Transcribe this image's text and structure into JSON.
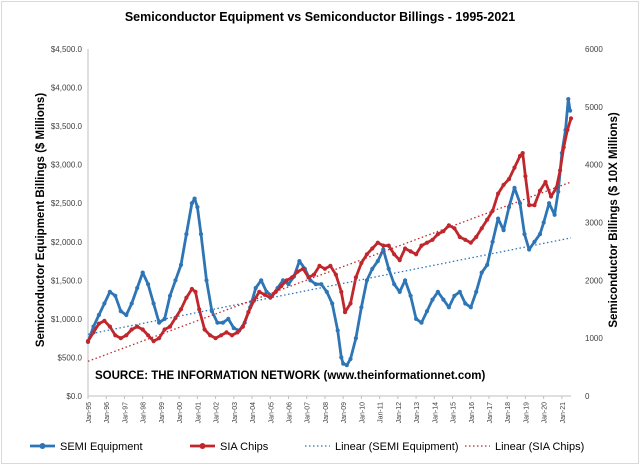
{
  "chart_data": {
    "type": "line",
    "title": "Semiconductor Equipment vs Semiconductor Billings - 1995-2021",
    "ylabel_left": "Semiconductor Equipment Billings ($ Millions)",
    "ylabel_right": "Semiconductor Billings ($ 10X Millions)",
    "source_note": "SOURCE: THE INFORMATION NETWORK (www.theinformationnet.com)",
    "x_range": [
      1995.0,
      2021.5
    ],
    "y_left": {
      "min": 0,
      "max": 4500,
      "step": 500
    },
    "y_right": {
      "min": 0,
      "max": 6000,
      "step": 1000
    },
    "y_left_ticks": [
      "$0.0",
      "$500.0",
      "$1,000.0",
      "$1,500.0",
      "$2,000.0",
      "$2,500.0",
      "$3,000.0",
      "$3,500.0",
      "$4,000.0",
      "$4,500.0"
    ],
    "y_right_ticks": [
      "0",
      "1000",
      "2000",
      "3000",
      "4000",
      "5000",
      "6000"
    ],
    "x_ticks": [
      {
        "label": "Jan-95",
        "x": 1995
      },
      {
        "label": "Jan-96",
        "x": 1996
      },
      {
        "label": "Jan-97",
        "x": 1997
      },
      {
        "label": "Jan-98",
        "x": 1998
      },
      {
        "label": "Jan-99",
        "x": 1999
      },
      {
        "label": "Jan-00",
        "x": 2000
      },
      {
        "label": "Jan-01",
        "x": 2001
      },
      {
        "label": "Jan-02",
        "x": 2002
      },
      {
        "label": "Jan-03",
        "x": 2003
      },
      {
        "label": "Jan-04",
        "x": 2004
      },
      {
        "label": "Jan-05",
        "x": 2005
      },
      {
        "label": "Jan-06",
        "x": 2006
      },
      {
        "label": "Jan-07",
        "x": 2007
      },
      {
        "label": "Jan-08",
        "x": 2008
      },
      {
        "label": "Jan-09",
        "x": 2009
      },
      {
        "label": "Jan-10",
        "x": 2010
      },
      {
        "label": "Jan-11",
        "x": 2011
      },
      {
        "label": "Jan-12",
        "x": 2012
      },
      {
        "label": "Jan-13",
        "x": 2013
      },
      {
        "label": "Jan-14",
        "x": 2014
      },
      {
        "label": "Jan-15",
        "x": 2015
      },
      {
        "label": "Jan-16",
        "x": 2016
      },
      {
        "label": "Jan-17",
        "x": 2017
      },
      {
        "label": "Jan-18",
        "x": 2018
      },
      {
        "label": "Jan-19",
        "x": 2019
      },
      {
        "label": "Jan-20",
        "x": 2020
      },
      {
        "label": "Jan-21",
        "x": 2021
      }
    ],
    "series": [
      {
        "name": "SEMI Equipment",
        "axis": "left",
        "color": "#2e75b6",
        "marker": "circle",
        "points": [
          [
            1995.0,
            700
          ],
          [
            1995.3,
            900
          ],
          [
            1995.6,
            1050
          ],
          [
            1995.9,
            1200
          ],
          [
            1996.2,
            1350
          ],
          [
            1996.5,
            1300
          ],
          [
            1996.8,
            1100
          ],
          [
            1997.1,
            1050
          ],
          [
            1997.4,
            1200
          ],
          [
            1997.7,
            1400
          ],
          [
            1998.0,
            1600
          ],
          [
            1998.3,
            1450
          ],
          [
            1998.6,
            1200
          ],
          [
            1998.9,
            950
          ],
          [
            1999.2,
            1000
          ],
          [
            1999.5,
            1300
          ],
          [
            1999.8,
            1500
          ],
          [
            2000.1,
            1700
          ],
          [
            2000.4,
            2100
          ],
          [
            2000.7,
            2500
          ],
          [
            2000.85,
            2560
          ],
          [
            2001.0,
            2450
          ],
          [
            2001.2,
            2100
          ],
          [
            2001.5,
            1500
          ],
          [
            2001.8,
            1100
          ],
          [
            2002.1,
            950
          ],
          [
            2002.4,
            950
          ],
          [
            2002.7,
            1000
          ],
          [
            2003.0,
            880
          ],
          [
            2003.3,
            850
          ],
          [
            2003.6,
            950
          ],
          [
            2003.9,
            1150
          ],
          [
            2004.2,
            1400
          ],
          [
            2004.5,
            1500
          ],
          [
            2004.8,
            1350
          ],
          [
            2005.1,
            1300
          ],
          [
            2005.4,
            1400
          ],
          [
            2005.7,
            1500
          ],
          [
            2006.0,
            1450
          ],
          [
            2006.3,
            1550
          ],
          [
            2006.6,
            1750
          ],
          [
            2006.9,
            1650
          ],
          [
            2007.2,
            1500
          ],
          [
            2007.5,
            1450
          ],
          [
            2007.8,
            1450
          ],
          [
            2008.1,
            1350
          ],
          [
            2008.4,
            1200
          ],
          [
            2008.7,
            850
          ],
          [
            2008.9,
            500
          ],
          [
            2009.0,
            420
          ],
          [
            2009.2,
            400
          ],
          [
            2009.4,
            480
          ],
          [
            2009.7,
            750
          ],
          [
            2010.0,
            1150
          ],
          [
            2010.3,
            1500
          ],
          [
            2010.6,
            1650
          ],
          [
            2010.9,
            1750
          ],
          [
            2011.2,
            1900
          ],
          [
            2011.5,
            1650
          ],
          [
            2011.8,
            1450
          ],
          [
            2012.1,
            1350
          ],
          [
            2012.4,
            1500
          ],
          [
            2012.7,
            1300
          ],
          [
            2013.0,
            1000
          ],
          [
            2013.3,
            950
          ],
          [
            2013.6,
            1100
          ],
          [
            2013.9,
            1250
          ],
          [
            2014.2,
            1350
          ],
          [
            2014.5,
            1250
          ],
          [
            2014.8,
            1150
          ],
          [
            2015.1,
            1300
          ],
          [
            2015.4,
            1350
          ],
          [
            2015.7,
            1200
          ],
          [
            2016.0,
            1150
          ],
          [
            2016.3,
            1350
          ],
          [
            2016.6,
            1600
          ],
          [
            2016.9,
            1700
          ],
          [
            2017.2,
            2000
          ],
          [
            2017.5,
            2300
          ],
          [
            2017.8,
            2150
          ],
          [
            2018.1,
            2450
          ],
          [
            2018.4,
            2700
          ],
          [
            2018.7,
            2500
          ],
          [
            2018.95,
            2100
          ],
          [
            2019.2,
            1900
          ],
          [
            2019.5,
            2000
          ],
          [
            2019.8,
            2100
          ],
          [
            2020.0,
            2250
          ],
          [
            2020.3,
            2500
          ],
          [
            2020.6,
            2350
          ],
          [
            2020.8,
            2650
          ],
          [
            2021.0,
            3150
          ],
          [
            2021.2,
            3450
          ],
          [
            2021.35,
            3850
          ],
          [
            2021.45,
            3700
          ]
        ]
      },
      {
        "name": "SIA Chips",
        "axis": "right",
        "color": "#c0272d",
        "marker": "circle",
        "points": [
          [
            1995.0,
            950
          ],
          [
            1995.3,
            1100
          ],
          [
            1995.6,
            1250
          ],
          [
            1995.9,
            1300
          ],
          [
            1996.2,
            1200
          ],
          [
            1996.5,
            1050
          ],
          [
            1996.8,
            1000
          ],
          [
            1997.1,
            1050
          ],
          [
            1997.4,
            1150
          ],
          [
            1997.7,
            1200
          ],
          [
            1998.0,
            1150
          ],
          [
            1998.3,
            1050
          ],
          [
            1998.6,
            950
          ],
          [
            1998.9,
            1000
          ],
          [
            1999.2,
            1150
          ],
          [
            1999.5,
            1200
          ],
          [
            1999.8,
            1350
          ],
          [
            2000.1,
            1500
          ],
          [
            2000.4,
            1700
          ],
          [
            2000.7,
            1850
          ],
          [
            2000.9,
            1800
          ],
          [
            2001.1,
            1500
          ],
          [
            2001.4,
            1150
          ],
          [
            2001.7,
            1050
          ],
          [
            2002.0,
            1000
          ],
          [
            2002.3,
            1050
          ],
          [
            2002.6,
            1100
          ],
          [
            2002.9,
            1050
          ],
          [
            2003.2,
            1100
          ],
          [
            2003.5,
            1200
          ],
          [
            2003.8,
            1450
          ],
          [
            2004.1,
            1650
          ],
          [
            2004.4,
            1800
          ],
          [
            2004.7,
            1750
          ],
          [
            2005.0,
            1700
          ],
          [
            2005.3,
            1800
          ],
          [
            2005.6,
            1900
          ],
          [
            2005.9,
            2000
          ],
          [
            2006.2,
            2050
          ],
          [
            2006.5,
            2150
          ],
          [
            2006.8,
            2200
          ],
          [
            2007.1,
            2050
          ],
          [
            2007.4,
            2100
          ],
          [
            2007.7,
            2250
          ],
          [
            2008.0,
            2200
          ],
          [
            2008.3,
            2250
          ],
          [
            2008.6,
            2100
          ],
          [
            2008.9,
            1800
          ],
          [
            2009.1,
            1450
          ],
          [
            2009.4,
            1600
          ],
          [
            2009.7,
            2050
          ],
          [
            2010.0,
            2300
          ],
          [
            2010.3,
            2450
          ],
          [
            2010.6,
            2550
          ],
          [
            2010.9,
            2650
          ],
          [
            2011.2,
            2600
          ],
          [
            2011.5,
            2600
          ],
          [
            2011.8,
            2450
          ],
          [
            2012.1,
            2350
          ],
          [
            2012.4,
            2550
          ],
          [
            2012.7,
            2500
          ],
          [
            2013.0,
            2450
          ],
          [
            2013.3,
            2600
          ],
          [
            2013.6,
            2650
          ],
          [
            2013.9,
            2700
          ],
          [
            2014.2,
            2800
          ],
          [
            2014.5,
            2850
          ],
          [
            2014.8,
            2950
          ],
          [
            2015.1,
            2900
          ],
          [
            2015.4,
            2750
          ],
          [
            2015.7,
            2700
          ],
          [
            2016.0,
            2650
          ],
          [
            2016.3,
            2750
          ],
          [
            2016.6,
            2900
          ],
          [
            2016.9,
            3050
          ],
          [
            2017.2,
            3200
          ],
          [
            2017.5,
            3500
          ],
          [
            2017.8,
            3650
          ],
          [
            2018.1,
            3750
          ],
          [
            2018.4,
            3950
          ],
          [
            2018.7,
            4150
          ],
          [
            2018.85,
            4200
          ],
          [
            2019.0,
            3800
          ],
          [
            2019.2,
            3300
          ],
          [
            2019.5,
            3300
          ],
          [
            2019.8,
            3550
          ],
          [
            2020.1,
            3700
          ],
          [
            2020.4,
            3450
          ],
          [
            2020.7,
            3600
          ],
          [
            2020.9,
            3900
          ],
          [
            2021.1,
            4300
          ],
          [
            2021.3,
            4600
          ],
          [
            2021.5,
            4800
          ]
        ]
      },
      {
        "name": "Linear (SEMI Equipment)",
        "axis": "left",
        "color": "#2e75b6",
        "style": "dotted",
        "points": [
          [
            1995.0,
            800
          ],
          [
            2021.5,
            2050
          ]
        ]
      },
      {
        "name": "Linear (SIA Chips)",
        "axis": "right",
        "color": "#c0272d",
        "style": "dotted",
        "points": [
          [
            1995.0,
            600
          ],
          [
            2021.5,
            3700
          ]
        ]
      }
    ],
    "legend_position": "bottom",
    "grid": false
  }
}
